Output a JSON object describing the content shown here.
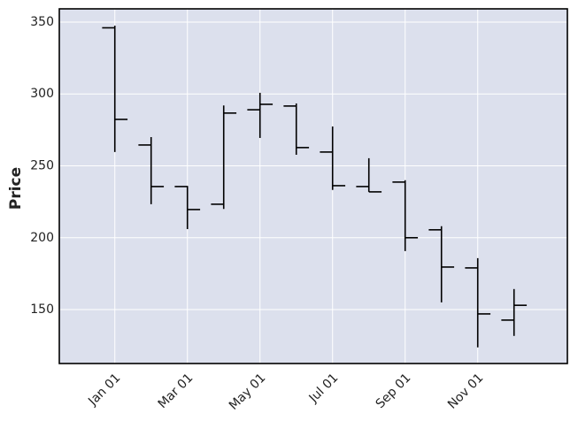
{
  "chart_data": {
    "type": "ohlc",
    "ylabel": "Price",
    "categories": [
      "Jan 01",
      null,
      "Mar 01",
      null,
      "May 01",
      null,
      "Jul 01",
      null,
      "Sep 01",
      null,
      "Nov 01",
      null
    ],
    "open": [
      346,
      264.5,
      235.6,
      223.3,
      289,
      291.6,
      259.6,
      235.6,
      238.7,
      205.5,
      179,
      142.7
    ],
    "high": [
      347.5,
      270,
      236,
      292,
      300.8,
      293.4,
      277.4,
      255.3,
      240,
      208,
      185.8,
      164.3
    ],
    "low": [
      259.6,
      223.3,
      206,
      220,
      269.4,
      257.7,
      233.2,
      231.9,
      190.7,
      155,
      123.7,
      131.7
    ],
    "close": [
      282.3,
      235.6,
      219.6,
      286.7,
      292.8,
      262.7,
      236.2,
      231.9,
      200,
      179.6,
      147,
      153
    ],
    "color": "#000000",
    "background": "#dce0ed",
    "grid": true,
    "xlim": [
      -1.53,
      12.47
    ],
    "ylim": [
      112.5,
      359.2
    ],
    "yticks": [
      150,
      200,
      250,
      300,
      350
    ]
  }
}
